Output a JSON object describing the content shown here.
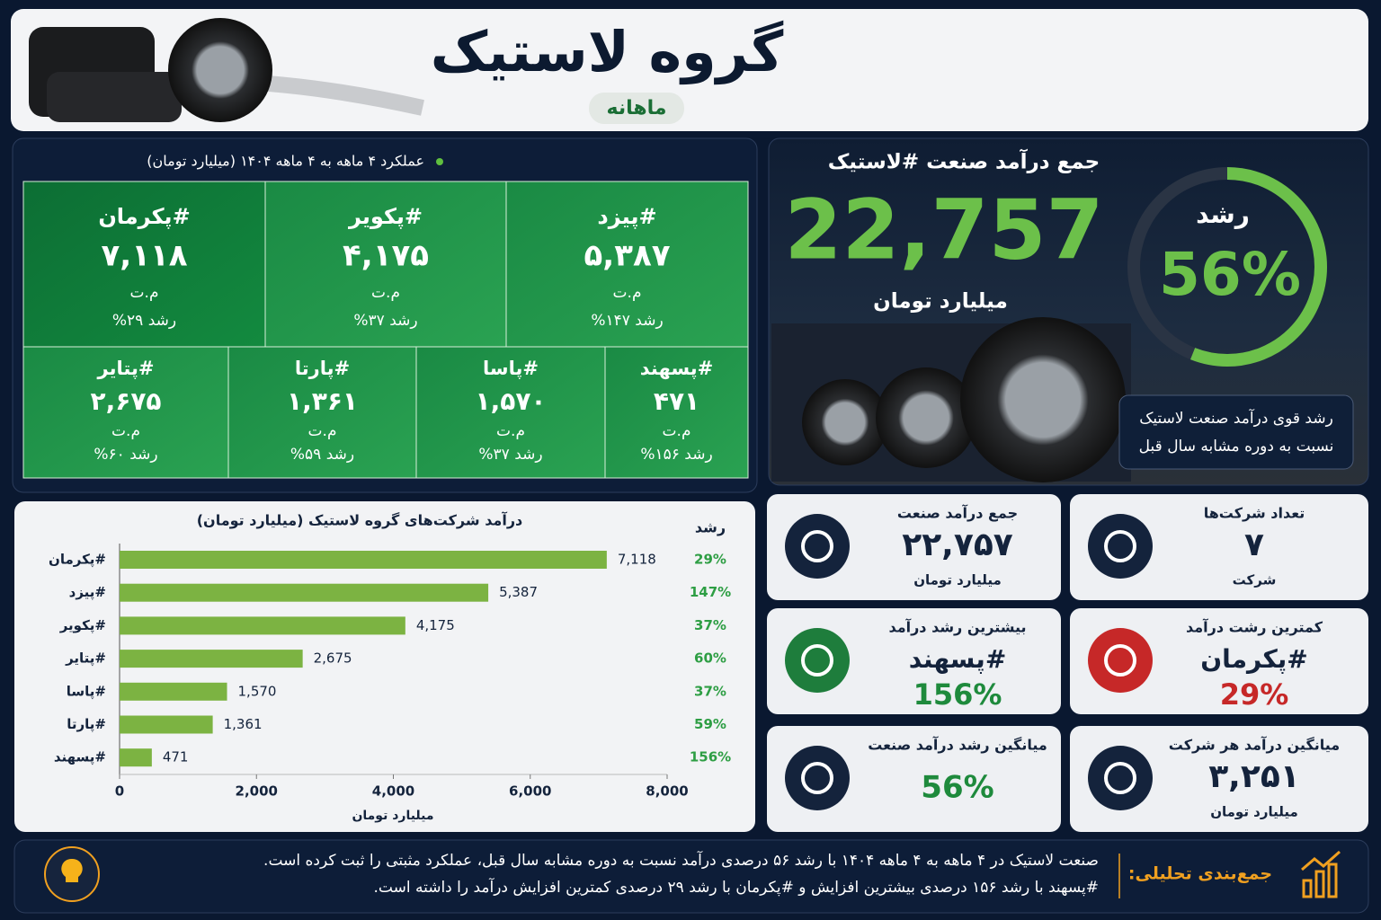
{
  "header": {
    "title": "گروه لاستیک",
    "subtitle": "ماهانه"
  },
  "performance": {
    "title": "عملکرد ۴ ماهه به ۴ ماهه ۱۴۰۴ (میلیارد تومان)",
    "tiles": [
      {
        "name": "#پیزد",
        "value": "۵,۳۸۷",
        "unit": "م.ت",
        "growth": "رشد ۱۴۷%"
      },
      {
        "name": "#پکویر",
        "value": "۴,۱۷۵",
        "unit": "م.ت",
        "growth": "رشد ۳۷%"
      },
      {
        "name": "#پکرمان",
        "value": "۷,۱۱۸",
        "unit": "م.ت",
        "growth": "رشد ۲۹%"
      },
      {
        "name": "#پسهند",
        "value": "۴۷۱",
        "unit": "م.ت",
        "growth": "رشد ۱۵۶%"
      },
      {
        "name": "#پاسا",
        "value": "۱,۵۷۰",
        "unit": "م.ت",
        "growth": "رشد ۳۷%"
      },
      {
        "name": "#پارتا",
        "value": "۱,۳۶۱",
        "unit": "م.ت",
        "growth": "رشد ۵۹%"
      },
      {
        "name": "#پتایر",
        "value": "۲,۶۷۵",
        "unit": "م.ت",
        "growth": "رشد ۶۰%"
      }
    ]
  },
  "total": {
    "title": "جمع درآمد صنعت #لاستیک",
    "value": "22,757",
    "unit": "میلیارد تومان",
    "growth_title": "رشد",
    "growth": 56,
    "growth_text": "56%",
    "note": [
      "رشد قوی درآمد صنعت لاستیک",
      "نسبت به دوره مشابه سال قبل"
    ]
  },
  "cards": [
    {
      "title": "تعداد شرکت‌ها",
      "value": "۷",
      "sub": "شرکت"
    },
    {
      "title": "جمع درآمد صنعت",
      "value": "۲۲,۷۵۷",
      "sub": "میلیارد تومان"
    },
    {
      "title": "کمترین رشت درآمد",
      "value": "#پکرمان",
      "sub": "29%"
    },
    {
      "title": "بیشترین رشد درآمد",
      "value": "#پسهند",
      "sub": "156%"
    },
    {
      "title": "میانگین درآمد هر شرکت",
      "value": "۳,۲۵۱",
      "sub": "میلیارد تومان"
    },
    {
      "title": "میانگین رشد درآمد صنعت",
      "value": "56%"
    }
  ],
  "chart_data": {
    "type": "bar",
    "orientation": "horizontal",
    "title": "درآمد شرکت‌های گروه لاستیک (میلیارد تومان)",
    "categories": [
      "#پکرمان",
      "#پیزد",
      "#پکویر",
      "#پتایر",
      "#پاسا",
      "#پارتا",
      "#پسهند"
    ],
    "values": [
      7118,
      5387,
      4175,
      2675,
      1570,
      1361,
      471
    ],
    "value_labels": [
      "7,118",
      "5,387",
      "4,175",
      "2,675",
      "1,570",
      "1,361",
      "471"
    ],
    "growth_title": "رشد",
    "growth_labels": [
      "29%",
      "147%",
      "37%",
      "60%",
      "37%",
      "59%",
      "156%"
    ],
    "color": "#7cb342",
    "xlim": [
      0,
      8000
    ],
    "xticks": [
      0,
      {
        "value": 2000,
        "label": "2,000"
      },
      {
        "value": 4000,
        "label": "4,000"
      },
      {
        "value": 6000,
        "label": "6,000"
      },
      {
        "value": 8000,
        "label": "8,000"
      }
    ],
    "xlabel": "میلیارد تومان"
  },
  "summary": {
    "title": "جمع‌بندی تحلیلی:",
    "lines": [
      "صنعت لاستیک در ۴ ماهه به ۴ ماهه ۱۴۰۴ با رشد ۵۶ درصدی درآمد نسبت به دوره مشابه سال قبل، عملکرد مثبتی را ثبت کرده است.",
      "#پسهند با رشد ۱۵۶ درصدی بیشترین افزایش و #پکرمان با رشد ۲۹ درصدی کمترین افزایش درآمد را داشته است."
    ]
  }
}
